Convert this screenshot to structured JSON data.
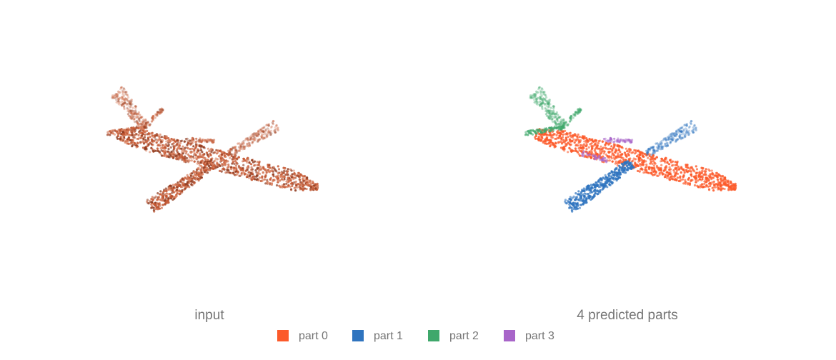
{
  "panels": [
    {
      "caption": "input"
    },
    {
      "caption": "4 predicted parts"
    }
  ],
  "input_color": "#c4552f",
  "legend": [
    {
      "label": "part 0",
      "color": "#fc5a2a"
    },
    {
      "label": "part 1",
      "color": "#2f74bf"
    },
    {
      "label": "part 2",
      "color": "#3fa86b"
    },
    {
      "label": "part 3",
      "color": "#a865c9"
    }
  ]
}
